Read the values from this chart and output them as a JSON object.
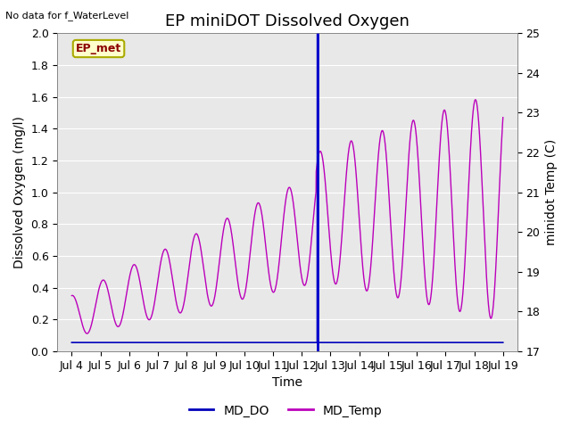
{
  "title": "EP miniDOT Dissolved Oxygen",
  "xlabel": "Time",
  "ylabel_left": "Dissolved Oxygen (mg/l)",
  "ylabel_right": "minidot Temp (C)",
  "no_data_text": "No data for f_WaterLevel",
  "ep_met_label": "EP_met",
  "ylim_left": [
    0.0,
    2.0
  ],
  "ylim_right": [
    17.0,
    25.0
  ],
  "xlim": [
    3.5,
    19.5
  ],
  "xtick_positions": [
    4,
    5,
    6,
    7,
    8,
    9,
    10,
    11,
    12,
    13,
    14,
    15,
    16,
    17,
    18,
    19
  ],
  "xtick_labels": [
    "Jul 4",
    "Jul 5",
    "Jul 6",
    "Jul 7",
    "Jul 8",
    "Jul 9",
    "Jul 10",
    "Jul 11",
    "Jul 12",
    "Jul 13",
    "Jul 14",
    "Jul 15",
    "Jul 16",
    "Jul 17",
    "Jul 18",
    "Jul 19"
  ],
  "vline_x": 12.55,
  "bg_color": "#e8e8e8",
  "do_color": "#0000bb",
  "temp_color": "#bb00bb",
  "vline_color": "#0000cc",
  "legend_do": "MD_DO",
  "legend_temp": "MD_Temp",
  "title_fontsize": 13,
  "axis_label_fontsize": 10,
  "tick_fontsize": 9,
  "yticks_left": [
    0.0,
    0.2,
    0.4,
    0.6,
    0.8,
    1.0,
    1.2,
    1.4,
    1.6,
    1.8,
    2.0
  ],
  "yticks_right": [
    17.0,
    18.0,
    19.0,
    20.0,
    21.0,
    22.0,
    23.0,
    24.0,
    25.0
  ]
}
